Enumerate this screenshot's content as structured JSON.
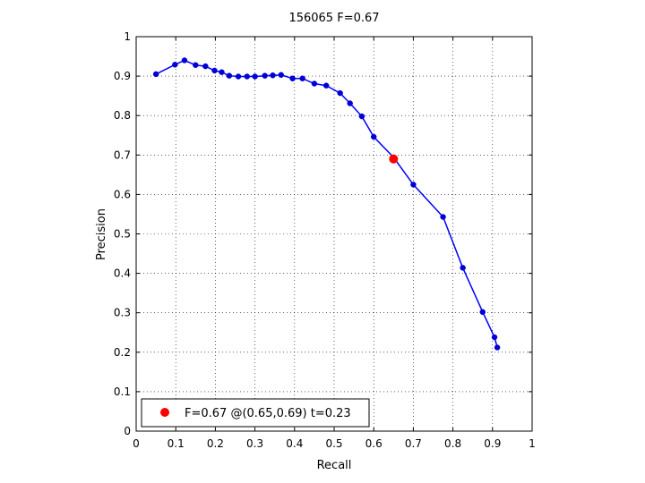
{
  "chart_data": {
    "type": "line",
    "title": "156065 F=0.67",
    "xlabel": "Recall",
    "ylabel": "Precision",
    "xlim": [
      0,
      1
    ],
    "ylim": [
      0,
      1
    ],
    "xticks": [
      0,
      0.1,
      0.2,
      0.3,
      0.4,
      0.5,
      0.6,
      0.7,
      0.8,
      0.9,
      1
    ],
    "yticks": [
      0,
      0.1,
      0.2,
      0.3,
      0.4,
      0.5,
      0.6,
      0.7,
      0.8,
      0.9,
      1
    ],
    "xtick_labels": [
      "0",
      "0.1",
      "0.2",
      "0.3",
      "0.4",
      "0.5",
      "0.6",
      "0.7",
      "0.8",
      "0.9",
      "1"
    ],
    "ytick_labels": [
      "0",
      "0.1",
      "0.2",
      "0.3",
      "0.4",
      "0.5",
      "0.6",
      "0.7",
      "0.8",
      "0.9",
      "1"
    ],
    "grid": true,
    "legend_position": "bottom-left",
    "series": [
      {
        "color": "#0000ff",
        "marker_color": "#0000cc",
        "points": [
          [
            0.05,
            0.905
          ],
          [
            0.098,
            0.929
          ],
          [
            0.122,
            0.94
          ],
          [
            0.15,
            0.928
          ],
          [
            0.175,
            0.925
          ],
          [
            0.198,
            0.914
          ],
          [
            0.216,
            0.91
          ],
          [
            0.235,
            0.901
          ],
          [
            0.258,
            0.899
          ],
          [
            0.28,
            0.899
          ],
          [
            0.3,
            0.899
          ],
          [
            0.325,
            0.901
          ],
          [
            0.345,
            0.902
          ],
          [
            0.366,
            0.903
          ],
          [
            0.395,
            0.894
          ],
          [
            0.42,
            0.894
          ],
          [
            0.45,
            0.881
          ],
          [
            0.48,
            0.876
          ],
          [
            0.515,
            0.857
          ],
          [
            0.54,
            0.831
          ],
          [
            0.57,
            0.798
          ],
          [
            0.6,
            0.746
          ],
          [
            0.65,
            0.694
          ],
          [
            0.7,
            0.625
          ],
          [
            0.775,
            0.543
          ],
          [
            0.825,
            0.414
          ],
          [
            0.875,
            0.302
          ],
          [
            0.905,
            0.238
          ],
          [
            0.912,
            0.212
          ]
        ]
      }
    ],
    "optimal_point": {
      "recall": 0.65,
      "precision": 0.69,
      "color": "#ff0000",
      "legend": "F=0.67 @(0.65,0.69) t=0.23"
    }
  }
}
